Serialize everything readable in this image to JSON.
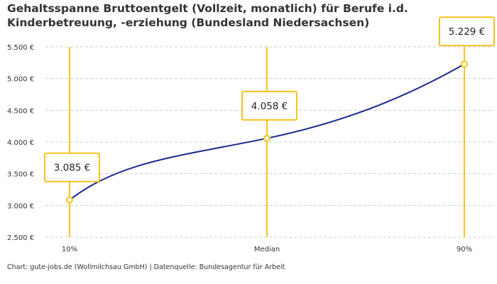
{
  "chart_data": {
    "type": "line",
    "title": "Gehaltsspanne Bruttoentgelt (Vollzeit, monatlich) für Berufe i.d. Kinderbetreuung, -erziehung (Bundesland Niedersachsen)",
    "categories": [
      "10%",
      "Median",
      "90%"
    ],
    "values": [
      3085,
      4058,
      5229
    ],
    "data_labels": [
      "3.085 €",
      "4.058 €",
      "5.229 €"
    ],
    "ylim": [
      2500,
      5500
    ],
    "yticks": [
      2500,
      3000,
      3500,
      4000,
      4500,
      5000,
      5500
    ],
    "ytick_labels": [
      "2.500 €",
      "3.000 €",
      "3.500 €",
      "4.000 €",
      "4.500 €",
      "5.000 €",
      "5.500 €"
    ],
    "grid": true,
    "colors": {
      "line": "#1b2b8f",
      "marker": "#f7c21c",
      "grid": "#cccccc"
    }
  },
  "credit": "Chart: gute-jobs.de (Wollmilchsau GmbH) | Datenquelle: Bundesagentur für Arbeit"
}
